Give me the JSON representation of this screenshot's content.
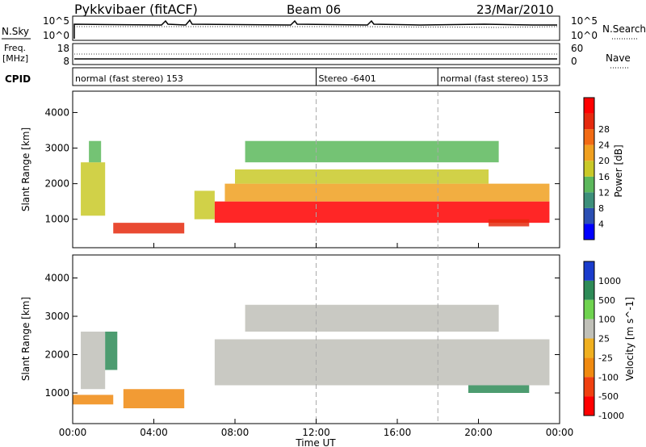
{
  "header": {
    "station": "Pykkvibaer (fitACF)",
    "beam": "Beam 06",
    "date": "23/Mar/2010"
  },
  "nsky_panel": {
    "left_label": "N.Sky",
    "left_ticks": [
      "10^5",
      "10^0"
    ],
    "right_ticks": [
      "10^5",
      "10^0"
    ],
    "right_label": "N.Search"
  },
  "freq_panel": {
    "left_label_line1": "Freq.",
    "left_label_line2": "[MHz]",
    "left_ticks": [
      "18",
      "8"
    ],
    "right_ticks": [
      "60",
      "0"
    ],
    "right_label": "Nave"
  },
  "cpid_panel": {
    "label": "CPID",
    "segments": [
      {
        "label": "normal (fast stereo) 153",
        "start_hour": 0
      },
      {
        "label": "Stereo -6401",
        "start_hour": 12
      },
      {
        "label": "normal (fast stereo) 153",
        "start_hour": 18
      }
    ]
  },
  "x_axis": {
    "label": "Time UT",
    "ticks": [
      "00:00",
      "04:00",
      "08:00",
      "12:00",
      "16:00",
      "20:00",
      "00:00"
    ]
  },
  "y_axis": {
    "label": "Slant Range [km]",
    "ticks": [
      "1000",
      "2000",
      "3000",
      "4000"
    ]
  },
  "power_colorbar": {
    "label": "Power [dB]",
    "ticks": [
      "4",
      "8",
      "12",
      "16",
      "20",
      "24",
      "28"
    ],
    "colors": [
      "#0000ff",
      "#2b4fb3",
      "#3d8f7a",
      "#5cb85c",
      "#c9c928",
      "#f0a020",
      "#f26b14",
      "#e52a0e",
      "#ff0000"
    ]
  },
  "velocity_colorbar": {
    "label": "Velocity  [m s^-1]",
    "ticks": [
      "1000",
      "500",
      "100",
      "25",
      "-25",
      "-100",
      "-500",
      "-1000"
    ],
    "colors": [
      "#1a3ccc",
      "#2e8b57",
      "#6fd34f",
      "#c0c0b8",
      "#f0b020",
      "#f08a10",
      "#f04010",
      "#ff0000"
    ]
  },
  "chart_data": {
    "type": "heatmap",
    "title": "Pykkvibaer (fitACF)",
    "xlabel": "Time UT",
    "ylabel": "Slant Range [km]",
    "xlim_hours": [
      0,
      24
    ],
    "ylim_km": [
      200,
      4600
    ],
    "panels": [
      {
        "name": "Power",
        "unit": "dB",
        "regions": [
          {
            "t0": 0.4,
            "t1": 1.6,
            "r0": 1100,
            "r1": 2600,
            "value": 16
          },
          {
            "t0": 0.8,
            "t1": 1.4,
            "r0": 2600,
            "r1": 3200,
            "value": 10
          },
          {
            "t0": 2.0,
            "t1": 5.5,
            "r0": 600,
            "r1": 900,
            "value": 26
          },
          {
            "t0": 6.0,
            "t1": 7.0,
            "r0": 1000,
            "r1": 1800,
            "value": 16
          },
          {
            "t0": 7.0,
            "t1": 23.5,
            "r0": 900,
            "r1": 1500,
            "value": 29
          },
          {
            "t0": 7.5,
            "t1": 23.5,
            "r0": 1500,
            "r1": 2000,
            "value": 20
          },
          {
            "t0": 8.0,
            "t1": 20.5,
            "r0": 2000,
            "r1": 2400,
            "value": 16
          },
          {
            "t0": 8.5,
            "t1": 21.0,
            "r0": 2600,
            "r1": 3200,
            "value": 12
          },
          {
            "t0": 20.5,
            "t1": 22.5,
            "r0": 800,
            "r1": 1000,
            "value": 26
          }
        ]
      },
      {
        "name": "Velocity",
        "unit": "m s^-1",
        "regions": [
          {
            "t0": 0.4,
            "t1": 1.6,
            "r0": 1100,
            "r1": 2600,
            "value": 0
          },
          {
            "t0": 1.6,
            "t1": 2.2,
            "r0": 1600,
            "r1": 2600,
            "value": 300
          },
          {
            "t0": 0.0,
            "t1": 2.0,
            "r0": 700,
            "r1": 950,
            "value": -200
          },
          {
            "t0": 2.5,
            "t1": 5.5,
            "r0": 600,
            "r1": 1100,
            "value": -150
          },
          {
            "t0": 7.0,
            "t1": 23.5,
            "r0": 1200,
            "r1": 2400,
            "value": 0
          },
          {
            "t0": 8.5,
            "t1": 21.0,
            "r0": 2600,
            "r1": 3300,
            "value": 0
          },
          {
            "t0": 19.5,
            "t1": 22.5,
            "r0": 1000,
            "r1": 1200,
            "value": 700
          }
        ]
      }
    ]
  }
}
